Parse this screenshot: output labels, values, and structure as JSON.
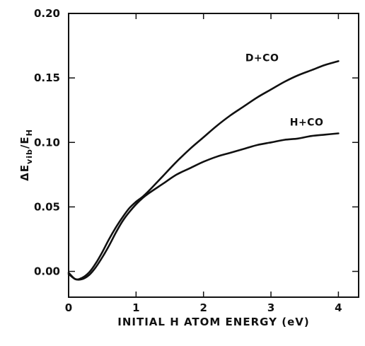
{
  "chart_data": {
    "type": "line",
    "title": "",
    "xlabel": "INITIAL H ATOM ENERGY (eV)",
    "ylabel": "ΔE",
    "ylabel_sub": "vib",
    "ylabel_tail": "/E",
    "ylabel_tail_sub": "H",
    "xlim": [
      0,
      4.3
    ],
    "ylim": [
      -0.02,
      0.2
    ],
    "x_ticks": [
      0,
      1,
      2,
      3,
      4
    ],
    "x_tick_labels": [
      "0",
      "1",
      "2",
      "3",
      "4"
    ],
    "y_ticks": [
      0.0,
      0.05,
      0.1,
      0.15,
      0.2
    ],
    "y_tick_labels": [
      "0.00",
      "0.05",
      "0.10",
      "0.15",
      "0.20"
    ],
    "grid": false,
    "series": [
      {
        "name": "D+CO",
        "x": [
          0,
          0.1,
          0.2,
          0.3,
          0.4,
          0.5,
          0.6,
          0.7,
          0.8,
          0.9,
          1.0,
          1.1,
          1.2,
          1.4,
          1.6,
          1.8,
          2.0,
          2.2,
          2.4,
          2.6,
          2.8,
          3.0,
          3.2,
          3.4,
          3.6,
          3.8,
          4.0
        ],
        "y": [
          -0.001,
          -0.006,
          -0.005,
          -0.001,
          0.006,
          0.015,
          0.025,
          0.034,
          0.042,
          0.049,
          0.054,
          0.058,
          0.063,
          0.074,
          0.085,
          0.095,
          0.104,
          0.113,
          0.121,
          0.128,
          0.135,
          0.141,
          0.147,
          0.152,
          0.156,
          0.16,
          0.163
        ]
      },
      {
        "name": "H+CO",
        "x": [
          0,
          0.1,
          0.2,
          0.3,
          0.4,
          0.5,
          0.6,
          0.7,
          0.8,
          0.9,
          1.0,
          1.1,
          1.2,
          1.4,
          1.6,
          1.8,
          2.0,
          2.2,
          2.4,
          2.6,
          2.8,
          3.0,
          3.2,
          3.4,
          3.6,
          3.8,
          4.0
        ],
        "y": [
          -0.002,
          -0.006,
          -0.006,
          -0.003,
          0.003,
          0.011,
          0.02,
          0.03,
          0.039,
          0.046,
          0.052,
          0.057,
          0.061,
          0.068,
          0.075,
          0.08,
          0.085,
          0.089,
          0.092,
          0.095,
          0.098,
          0.1,
          0.102,
          0.103,
          0.105,
          0.106,
          0.107
        ]
      }
    ],
    "series_label_points": [
      {
        "x": 2.62,
        "y": 0.163
      },
      {
        "x": 3.28,
        "y": 0.113
      }
    ]
  }
}
